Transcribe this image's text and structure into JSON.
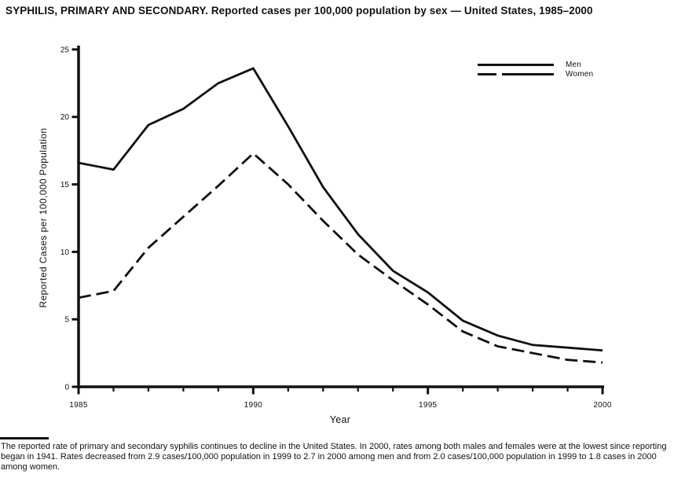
{
  "header": {
    "title": "SYPHILIS, PRIMARY AND SECONDARY. Reported cases per 100,000 population by sex — United States, 1985–2000"
  },
  "chart_data": {
    "type": "line",
    "title": "SYPHILIS, PRIMARY AND SECONDARY. Reported cases per 100,000 population by sex — United States, 1985–2000",
    "xlabel": "Year",
    "ylabel": "Reported Cases per 100,000 Population",
    "x": [
      1985,
      1986,
      1987,
      1988,
      1989,
      1990,
      1991,
      1992,
      1993,
      1994,
      1995,
      1996,
      1997,
      1998,
      1999,
      2000
    ],
    "series": [
      {
        "name": "Men",
        "line_style": "solid",
        "values": [
          16.6,
          16.1,
          19.4,
          20.6,
          22.5,
          23.6,
          19.3,
          14.8,
          11.3,
          8.6,
          7.0,
          4.9,
          3.8,
          3.1,
          2.9,
          2.7
        ]
      },
      {
        "name": "Women",
        "line_style": "dashed",
        "values": [
          6.6,
          7.1,
          10.3,
          12.6,
          14.9,
          17.3,
          15.0,
          12.3,
          9.8,
          7.9,
          6.1,
          4.1,
          3.0,
          2.5,
          2.0,
          1.8
        ]
      }
    ],
    "xlim": [
      1985,
      2000
    ],
    "ylim": [
      0,
      25
    ],
    "yticks": [
      0,
      5,
      10,
      15,
      20,
      25
    ],
    "xticks_labeled": [
      1985,
      1990,
      1995,
      2000
    ],
    "grid": false,
    "legend_position": "top-right",
    "line_color": "#111111",
    "background": "#ffffff"
  },
  "footnote": {
    "text": "The reported rate of primary and secondary syphilis continues to decline in the United States. In 2000, rates among both males and females were at the lowest since reporting began in 1941. Rates decreased from 2.9 cases/100,000 population in 1999 to 2.7 in 2000 among men and from 2.0 cases/100,000 population in 1999 to 1.8 cases in 2000 among women."
  }
}
